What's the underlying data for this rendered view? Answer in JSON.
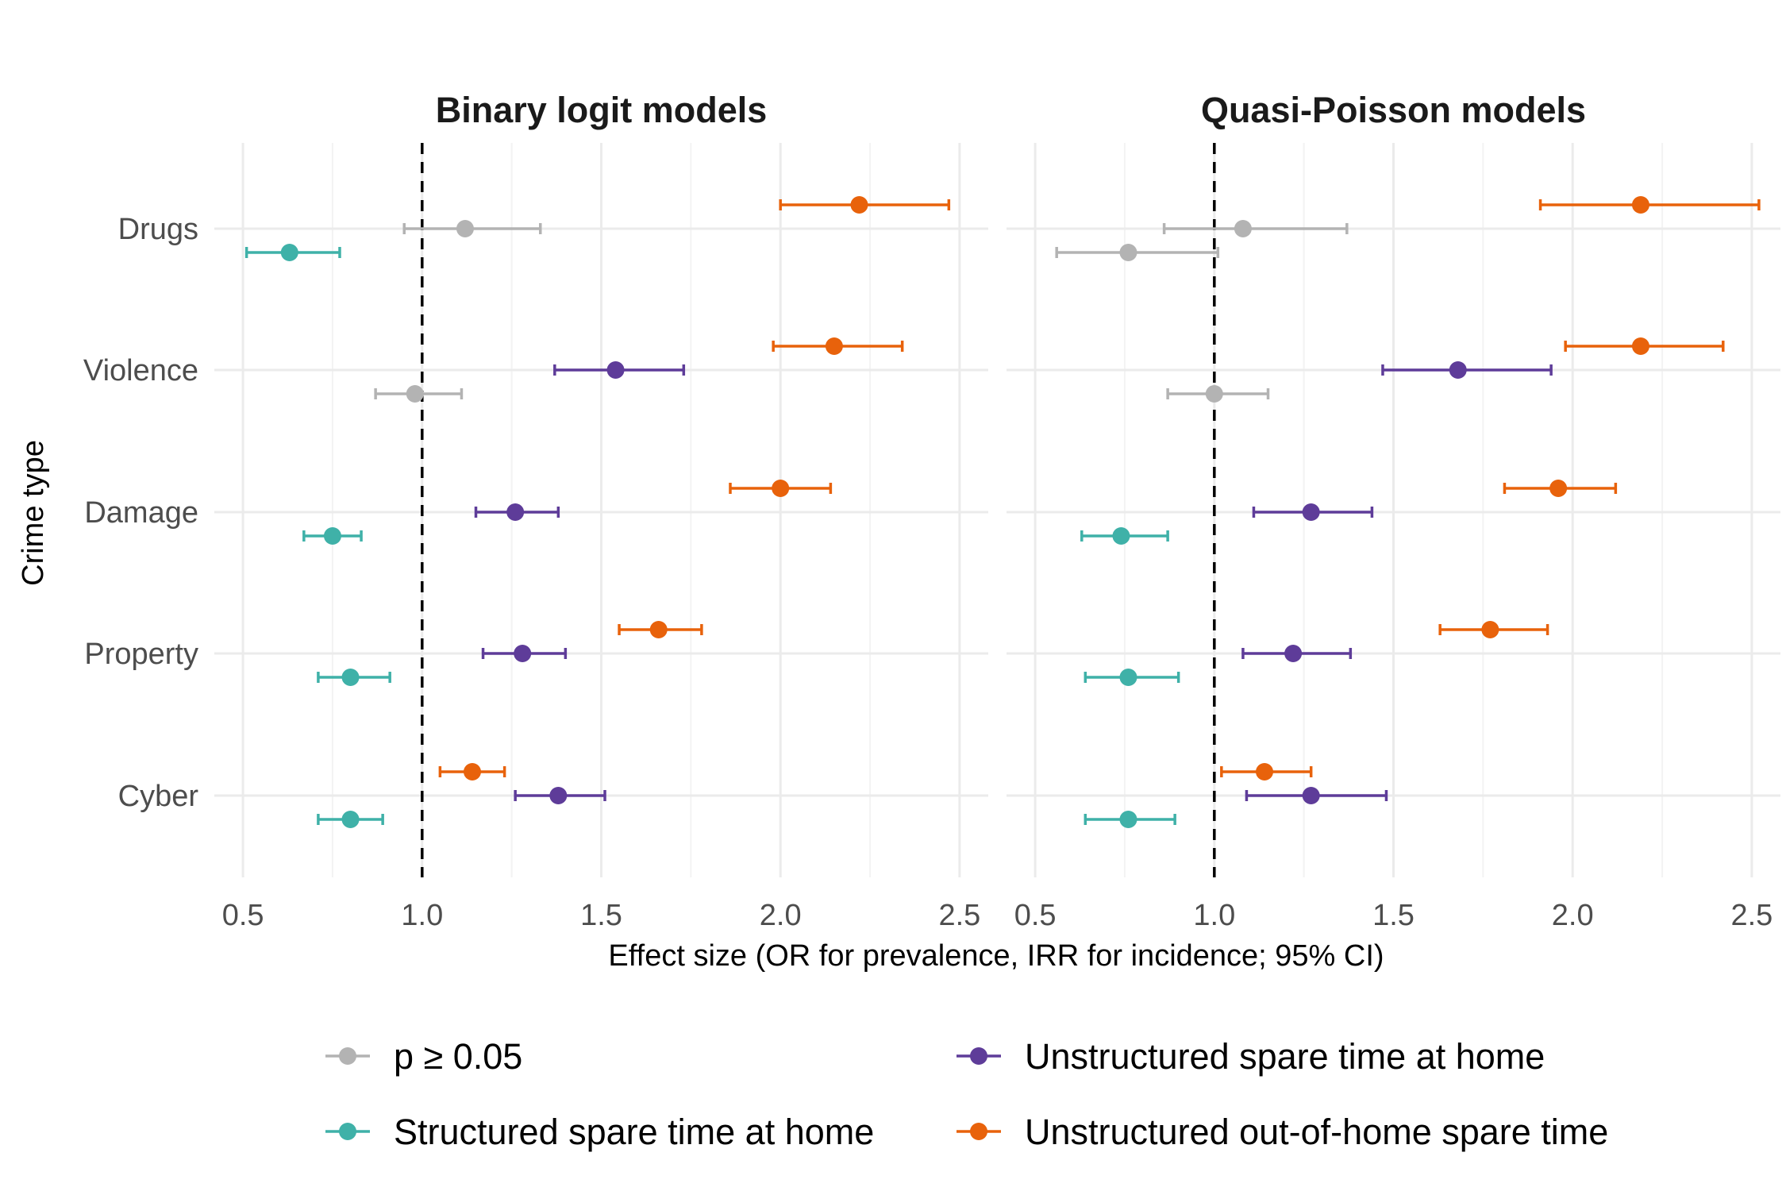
{
  "chart_data": {
    "type": "scatter",
    "subtype": "forest-plot-with-error-bars",
    "xlabel": "Effect size (OR for prevalence, IRR for incidence; 95% CI)",
    "ylabel": "Crime type",
    "xlim": [
      0.42,
      2.58
    ],
    "x_ticks": [
      0.5,
      1.0,
      1.5,
      2.0,
      2.5
    ],
    "x_tick_labels": [
      "0.5",
      "1.0",
      "1.5",
      "2.0",
      "2.5"
    ],
    "reference_line": 1.0,
    "categories": [
      "Drugs",
      "Violence",
      "Damage",
      "Property",
      "Cyber"
    ],
    "grid": true,
    "legend_position": "bottom",
    "legend": [
      {
        "key": "ns",
        "label": "p ≥ 0.05",
        "color": "#B3B3B3"
      },
      {
        "key": "unstructured_home",
        "label": "Unstructured spare time at home",
        "color": "#5E3C99"
      },
      {
        "key": "structured_home",
        "label": "Structured spare time at home",
        "color": "#3FB1A8"
      },
      {
        "key": "out_of_home",
        "label": "Unstructured out-of-home spare time",
        "color": "#E8620B"
      }
    ],
    "panels": [
      {
        "title": "Binary logit models",
        "points": [
          {
            "category": "Drugs",
            "series": "out_of_home",
            "sig": true,
            "est": 2.22,
            "lo": 2.0,
            "hi": 2.47
          },
          {
            "category": "Drugs",
            "series": "structured_home",
            "sig": true,
            "est": 0.63,
            "lo": 0.51,
            "hi": 0.77
          },
          {
            "category": "Drugs",
            "series": "unstructured_home",
            "sig": false,
            "est": 1.12,
            "lo": 0.95,
            "hi": 1.33
          },
          {
            "category": "Violence",
            "series": "out_of_home",
            "sig": true,
            "est": 2.15,
            "lo": 1.98,
            "hi": 2.34
          },
          {
            "category": "Violence",
            "series": "unstructured_home",
            "sig": true,
            "est": 1.54,
            "lo": 1.37,
            "hi": 1.73
          },
          {
            "category": "Violence",
            "series": "structured_home",
            "sig": false,
            "est": 0.98,
            "lo": 0.87,
            "hi": 1.11
          },
          {
            "category": "Damage",
            "series": "out_of_home",
            "sig": true,
            "est": 2.0,
            "lo": 1.86,
            "hi": 2.14
          },
          {
            "category": "Damage",
            "series": "unstructured_home",
            "sig": true,
            "est": 1.26,
            "lo": 1.15,
            "hi": 1.38
          },
          {
            "category": "Damage",
            "series": "structured_home",
            "sig": true,
            "est": 0.75,
            "lo": 0.67,
            "hi": 0.83
          },
          {
            "category": "Property",
            "series": "out_of_home",
            "sig": true,
            "est": 1.66,
            "lo": 1.55,
            "hi": 1.78
          },
          {
            "category": "Property",
            "series": "unstructured_home",
            "sig": true,
            "est": 1.28,
            "lo": 1.17,
            "hi": 1.4
          },
          {
            "category": "Property",
            "series": "structured_home",
            "sig": true,
            "est": 0.8,
            "lo": 0.71,
            "hi": 0.91
          },
          {
            "category": "Cyber",
            "series": "out_of_home",
            "sig": true,
            "est": 1.14,
            "lo": 1.05,
            "hi": 1.23
          },
          {
            "category": "Cyber",
            "series": "unstructured_home",
            "sig": true,
            "est": 1.38,
            "lo": 1.26,
            "hi": 1.51
          },
          {
            "category": "Cyber",
            "series": "structured_home",
            "sig": true,
            "est": 0.8,
            "lo": 0.71,
            "hi": 0.89
          }
        ]
      },
      {
        "title": "Quasi-Poisson models",
        "points": [
          {
            "category": "Drugs",
            "series": "out_of_home",
            "sig": true,
            "est": 2.19,
            "lo": 1.91,
            "hi": 2.52
          },
          {
            "category": "Drugs",
            "series": "structured_home",
            "sig": false,
            "est": 0.76,
            "lo": 0.56,
            "hi": 1.01
          },
          {
            "category": "Drugs",
            "series": "unstructured_home",
            "sig": false,
            "est": 1.08,
            "lo": 0.86,
            "hi": 1.37
          },
          {
            "category": "Violence",
            "series": "out_of_home",
            "sig": true,
            "est": 2.19,
            "lo": 1.98,
            "hi": 2.42
          },
          {
            "category": "Violence",
            "series": "unstructured_home",
            "sig": true,
            "est": 1.68,
            "lo": 1.47,
            "hi": 1.94
          },
          {
            "category": "Violence",
            "series": "structured_home",
            "sig": false,
            "est": 1.0,
            "lo": 0.87,
            "hi": 1.15
          },
          {
            "category": "Damage",
            "series": "out_of_home",
            "sig": true,
            "est": 1.96,
            "lo": 1.81,
            "hi": 2.12
          },
          {
            "category": "Damage",
            "series": "unstructured_home",
            "sig": true,
            "est": 1.27,
            "lo": 1.11,
            "hi": 1.44
          },
          {
            "category": "Damage",
            "series": "structured_home",
            "sig": true,
            "est": 0.74,
            "lo": 0.63,
            "hi": 0.87
          },
          {
            "category": "Property",
            "series": "out_of_home",
            "sig": true,
            "est": 1.77,
            "lo": 1.63,
            "hi": 1.93
          },
          {
            "category": "Property",
            "series": "unstructured_home",
            "sig": true,
            "est": 1.22,
            "lo": 1.08,
            "hi": 1.38
          },
          {
            "category": "Property",
            "series": "structured_home",
            "sig": true,
            "est": 0.76,
            "lo": 0.64,
            "hi": 0.9
          },
          {
            "category": "Cyber",
            "series": "out_of_home",
            "sig": true,
            "est": 1.14,
            "lo": 1.02,
            "hi": 1.27
          },
          {
            "category": "Cyber",
            "series": "unstructured_home",
            "sig": true,
            "est": 1.27,
            "lo": 1.09,
            "hi": 1.48
          },
          {
            "category": "Cyber",
            "series": "structured_home",
            "sig": true,
            "est": 0.76,
            "lo": 0.64,
            "hi": 0.89
          }
        ]
      }
    ]
  }
}
